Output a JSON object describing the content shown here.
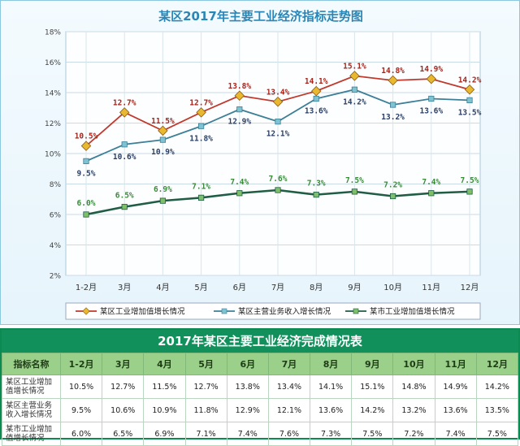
{
  "chart_data": {
    "type": "line",
    "title": "某区2017年主要工业经济指标走势图",
    "categories": [
      "1-2月",
      "3月",
      "4月",
      "5月",
      "6月",
      "7月",
      "8月",
      "9月",
      "10月",
      "11月",
      "12月"
    ],
    "ylim": [
      2,
      18
    ],
    "yticks": [
      "2%",
      "4%",
      "6%",
      "8%",
      "10%",
      "12%",
      "14%",
      "16%",
      "18%"
    ],
    "grid": true,
    "legend_position": "bottom",
    "series": [
      {
        "name": "某区工业增加值增长情况",
        "values": [
          10.5,
          12.7,
          11.5,
          12.7,
          13.8,
          13.4,
          14.1,
          15.1,
          14.8,
          14.9,
          14.2
        ],
        "labels": [
          "10.5%",
          "12.7%",
          "11.5%",
          "12.7%",
          "13.8%",
          "13.4%",
          "14.1%",
          "15.1%",
          "14.8%",
          "14.9%",
          "14.2%"
        ],
        "color": "#c0392b",
        "marker": "#e8b830"
      },
      {
        "name": "某区主营业务收入增长情况",
        "values": [
          9.5,
          10.6,
          10.9,
          11.8,
          12.9,
          12.1,
          13.6,
          14.2,
          13.2,
          13.6,
          13.5
        ],
        "labels": [
          "9.5%",
          "10.6%",
          "10.9%",
          "11.8%",
          "12.9%",
          "12.1%",
          "13.6%",
          "14.2%",
          "13.2%",
          "13.6%",
          "13.5%"
        ],
        "color": "#3c7f96",
        "marker": "#7fc3d3"
      },
      {
        "name": "某市工业增加值增长情况",
        "values": [
          6.0,
          6.5,
          6.9,
          7.1,
          7.4,
          7.6,
          7.3,
          7.5,
          7.2,
          7.4,
          7.5
        ],
        "labels": [
          "6.0%",
          "6.5%",
          "6.9%",
          "7.1%",
          "7.4%",
          "7.6%",
          "7.3%",
          "7.5%",
          "7.2%",
          "7.4%",
          "7.5%"
        ],
        "color": "#1f5d45",
        "marker": "#7fbf6a"
      }
    ]
  },
  "table": {
    "title": "2017年某区主要工业经济完成情况表",
    "header_label": "指标名称",
    "columns": [
      "1-2月",
      "3月",
      "4月",
      "5月",
      "6月",
      "7月",
      "8月",
      "9月",
      "10月",
      "11月",
      "12月"
    ],
    "rows": [
      {
        "name": "某区工业增加值增长情况",
        "cells": [
          "10.5%",
          "12.7%",
          "11.5%",
          "12.7%",
          "13.8%",
          "13.4%",
          "14.1%",
          "15.1%",
          "14.8%",
          "14.9%",
          "14.2%"
        ]
      },
      {
        "name": "某区主营业务收入增长情况",
        "cells": [
          "9.5%",
          "10.6%",
          "10.9%",
          "11.8%",
          "12.9%",
          "12.1%",
          "13.6%",
          "14.2%",
          "13.2%",
          "13.6%",
          "13.5%"
        ]
      },
      {
        "name": "某市工业增加值增长情况",
        "cells": [
          "6.0%",
          "6.5%",
          "6.9%",
          "7.1%",
          "7.4%",
          "7.6%",
          "7.3%",
          "7.5%",
          "7.2%",
          "7.4%",
          "7.5%"
        ]
      }
    ]
  }
}
